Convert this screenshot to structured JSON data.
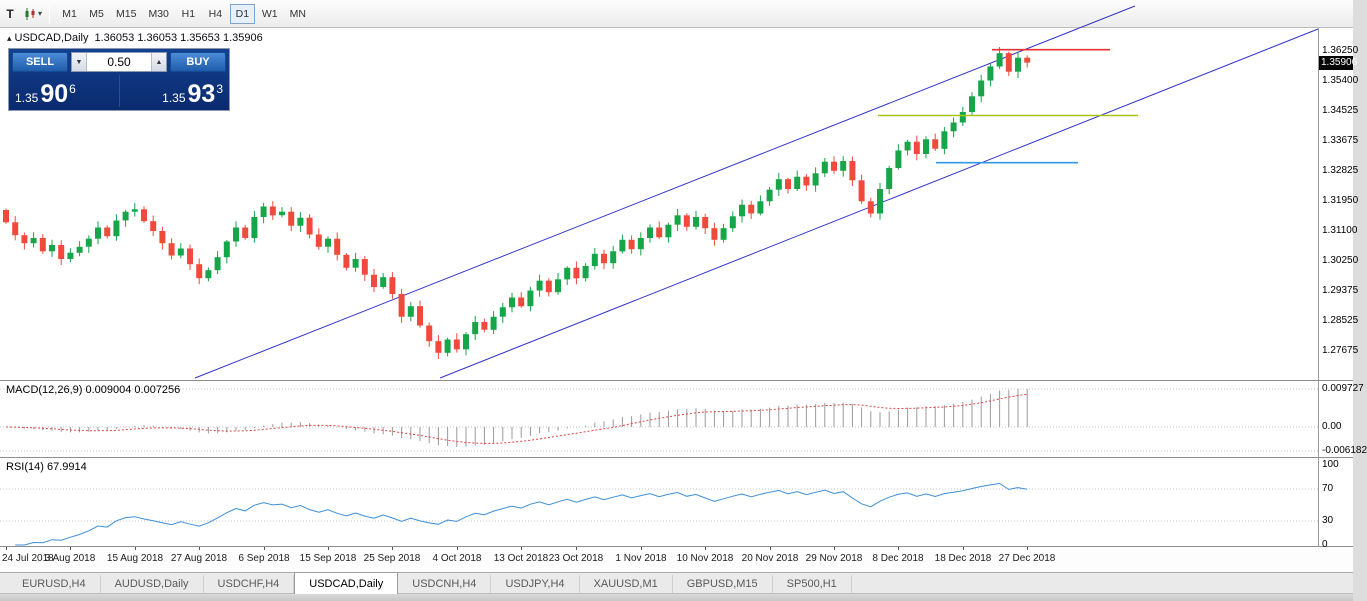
{
  "icons": {
    "partial_tool": "T",
    "dropdown": "▾",
    "collapse": "▴",
    "spin_up": "▲",
    "spin_down": "▼"
  },
  "toolbar": {
    "timeframes": [
      "M1",
      "M5",
      "M15",
      "M30",
      "H1",
      "H4",
      "D1",
      "W1",
      "MN"
    ],
    "active_timeframe": "D1"
  },
  "chart": {
    "title": {
      "symbol": "USDCAD,Daily",
      "ohlc": "1.36053 1.36053 1.35653 1.35906"
    },
    "current_price": "1.35906",
    "trade_panel": {
      "sell_label": "SELL",
      "buy_label": "BUY",
      "volume": "0.50",
      "bid": {
        "prefix": "1.35",
        "big": "90",
        "pip": "6"
      },
      "ask": {
        "prefix": "1.35",
        "big": "93",
        "pip": "3"
      }
    }
  },
  "indicators": {
    "macd": {
      "label": "MACD(12,26,9) 0.009004 0.007256",
      "params": "12,26,9",
      "values": "0.009004 0.007256"
    },
    "rsi": {
      "label": "RSI(14) 67.9914",
      "value": "67.9914",
      "levels": [
        70,
        30
      ]
    }
  },
  "colors": {
    "up": "#16a548",
    "down": "#ef4a3b",
    "channel": "#3333cc",
    "grid": "#c6c6ce",
    "macd_histogram": "#9a9a9a",
    "macd_signal": "#e34242",
    "rsi_line": "#3f8fd6"
  },
  "tabs": {
    "items": [
      "EURUSD,H4",
      "AUDUSD,Daily",
      "USDCHF,H4",
      "USDCAD,Daily",
      "USDCNH,H4",
      "USDJPY,H4",
      "XAUUSD,M1",
      "GBPUSD,M15",
      "SP500,H1"
    ],
    "active": "USDCAD,Daily"
  },
  "chart_data": {
    "type": "candlestick",
    "symbol": "USDCAD",
    "period": "Daily",
    "y_range": [
      1.269,
      1.367
    ],
    "price_ticks": [
      "1.36250",
      "1.35400",
      "1.34525",
      "1.33675",
      "1.32825",
      "1.31950",
      "1.31100",
      "1.30250",
      "1.29375",
      "1.28525",
      "1.27675"
    ],
    "macd_ticks": [
      "0.009727",
      "0.00",
      "-0.006182"
    ],
    "rsi_ticks": [
      "100",
      "70",
      "30",
      "0"
    ],
    "dates": [
      "24 Jul 2018",
      "3 Aug 2018",
      "15 Aug 2018",
      "27 Aug 2018",
      "6 Sep 2018",
      "15 Sep 2018",
      "25 Sep 2018",
      "4 Oct 2018",
      "13 Oct 2018",
      "23 Oct 2018",
      "1 Nov 2018",
      "10 Nov 2018",
      "20 Nov 2018",
      "29 Nov 2018",
      "8 Dec 2018",
      "18 Dec 2018",
      "27 Dec 2018"
    ],
    "open_first": 1.317,
    "closes": [
      1.3135,
      1.3098,
      1.3075,
      1.309,
      1.3052,
      1.307,
      1.303,
      1.3048,
      1.3065,
      1.3088,
      1.312,
      1.3095,
      1.314,
      1.3165,
      1.3172,
      1.3138,
      1.311,
      1.3075,
      1.304,
      1.306,
      1.3015,
      1.2975,
      1.2998,
      1.3035,
      1.308,
      1.312,
      1.309,
      1.315,
      1.318,
      1.3155,
      1.3165,
      1.3125,
      1.3148,
      1.31,
      1.3065,
      1.3088,
      1.3042,
      1.3005,
      1.303,
      1.2985,
      1.295,
      1.2978,
      1.293,
      1.2865,
      1.2895,
      1.284,
      1.2795,
      1.2762,
      1.28,
      1.2772,
      1.2815,
      1.285,
      1.2828,
      1.2865,
      1.2892,
      1.292,
      1.2895,
      1.294,
      1.2968,
      1.2935,
      1.2972,
      1.3005,
      1.2975,
      1.301,
      1.3045,
      1.3018,
      1.3052,
      1.3085,
      1.3058,
      1.309,
      1.312,
      1.3092,
      1.3128,
      1.3155,
      1.3122,
      1.315,
      1.3118,
      1.3085,
      1.3118,
      1.3152,
      1.3185,
      1.316,
      1.3195,
      1.3228,
      1.3258,
      1.323,
      1.3265,
      1.324,
      1.3275,
      1.3308,
      1.3282,
      1.331,
      1.3255,
      1.3195,
      1.316,
      1.323,
      1.329,
      1.334,
      1.3365,
      1.333,
      1.3372,
      1.3345,
      1.3395,
      1.342,
      1.345,
      1.3495,
      1.354,
      1.358,
      1.3618,
      1.3565,
      1.3605,
      1.3591
    ],
    "drawings": {
      "channel_lines": [
        {
          "x1": 195,
          "y1": 378,
          "x2": 1135,
          "y2": 6
        },
        {
          "x1": 440,
          "y1": 378,
          "x2": 1318,
          "y2": 29
        }
      ],
      "horizontal_lines": [
        {
          "price": 1.3628,
          "x1": 992,
          "x2": 1110,
          "color": "#e83030"
        },
        {
          "price": 1.344,
          "x1": 878,
          "x2": 1138,
          "color": "#a8c410"
        },
        {
          "price": 1.3305,
          "x1": 936,
          "x2": 1078,
          "color": "#2f9bea"
        }
      ]
    }
  }
}
